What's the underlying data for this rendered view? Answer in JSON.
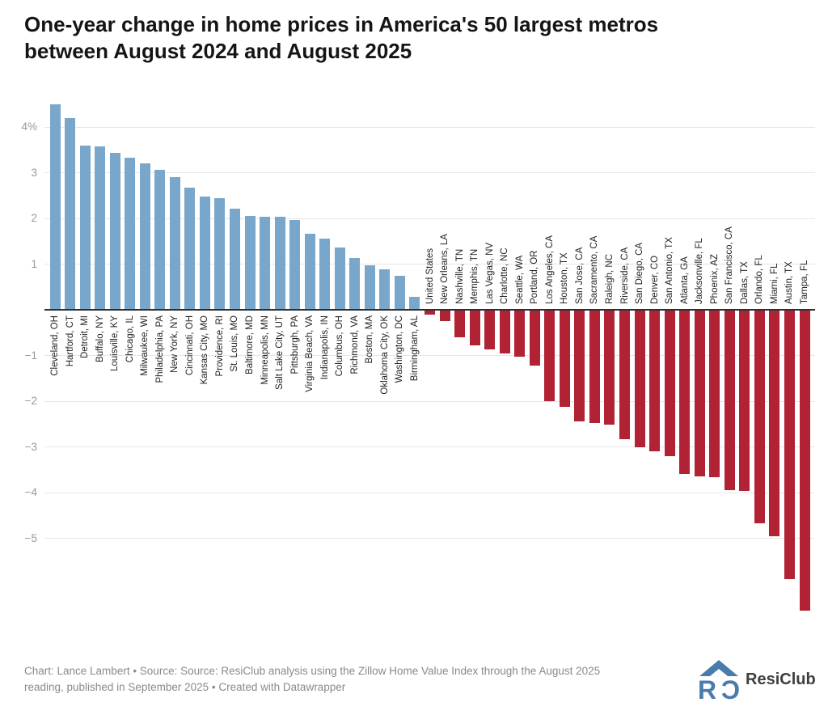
{
  "title": {
    "line1": "One-year change in home prices in America's 50 largest metros",
    "line2": "between August 2024 and August 2025"
  },
  "footer": {
    "line1": "Chart: Lance Lambert • Source: Source: ResiClub analysis using the Zillow Home Value Index through the August 2025",
    "line2": "reading, published in September 2025 • Created with Datawrapper",
    "logo_text": "ResiClub"
  },
  "colors": {
    "positive_bar": "#79a7cb",
    "negative_bar": "#b12334",
    "gridline": "#e6e6e6",
    "zero_line": "#2f2f2f",
    "tick_label": "#989898",
    "bar_label": "#222222",
    "logo_blue": "#4a7cab"
  },
  "chart_data": {
    "type": "bar",
    "title": "One-year change in home prices in America's 50 largest metros between August 2024 and August 2025",
    "xlabel": "",
    "ylabel": "",
    "unit": "%",
    "ylim": [
      -6.8,
      4.7
    ],
    "grid": true,
    "y_ticks": [
      {
        "value": 4,
        "label": "4%"
      },
      {
        "value": 3,
        "label": "3"
      },
      {
        "value": 2,
        "label": "2"
      },
      {
        "value": 1,
        "label": "1"
      },
      {
        "value": -1,
        "label": "−1"
      },
      {
        "value": -2,
        "label": "−2"
      },
      {
        "value": -3,
        "label": "−3"
      },
      {
        "value": -4,
        "label": "−4"
      },
      {
        "value": -5,
        "label": "−5"
      }
    ],
    "categories": [
      "Cleveland, OH",
      "Hartford, CT",
      "Detroit, MI",
      "Buffalo, NY",
      "Louisville, KY",
      "Chicago, IL",
      "Milwaukee, WI",
      "Philadelphia, PA",
      "New York, NY",
      "Cincinnati, OH",
      "Kansas City, MO",
      "Providence, RI",
      "St. Louis, MO",
      "Baltimore, MD",
      "Minneapolis, MN",
      "Salt Lake City, UT",
      "Pittsburgh, PA",
      "Virginia Beach, VA",
      "Indianapolis, IN",
      "Columbus, OH",
      "Richmond, VA",
      "Boston, MA",
      "Oklahoma City, OK",
      "Washington, DC",
      "Birmingham, AL",
      "United States",
      "New Orleans, LA",
      "Nashville, TN",
      "Memphis, TN",
      "Las Vegas, NV",
      "Charlotte, NC",
      "Seattle, WA",
      "Portland, OR",
      "Los Angeles, CA",
      "Houston, TX",
      "San Jose, CA",
      "Sacramento, CA",
      "Raleigh, NC",
      "Riverside, CA",
      "San Diego, CA",
      "Denver, CO",
      "San Antonio, TX",
      "Atlanta, GA",
      "Jacksonville, FL",
      "Phoenix, AZ",
      "San Francisco, CA",
      "Dallas, TX",
      "Orlando, FL",
      "Miami, FL",
      "Austin, TX",
      "Tampa, FL"
    ],
    "values": [
      4.5,
      4.2,
      3.6,
      3.58,
      3.43,
      3.32,
      3.2,
      3.06,
      2.9,
      2.67,
      2.47,
      2.44,
      2.22,
      2.05,
      2.04,
      2.03,
      1.97,
      1.67,
      1.56,
      1.37,
      1.13,
      0.98,
      0.88,
      0.74,
      0.28,
      -0.1,
      -0.25,
      -0.6,
      -0.78,
      -0.86,
      -0.95,
      -1.03,
      -1.23,
      -2.0,
      -2.13,
      -2.44,
      -2.48,
      -2.52,
      -2.83,
      -3.0,
      -3.1,
      -3.2,
      -3.6,
      -3.64,
      -3.67,
      -3.94,
      -3.97,
      -4.68,
      -4.95,
      -5.9,
      -6.58
    ]
  }
}
